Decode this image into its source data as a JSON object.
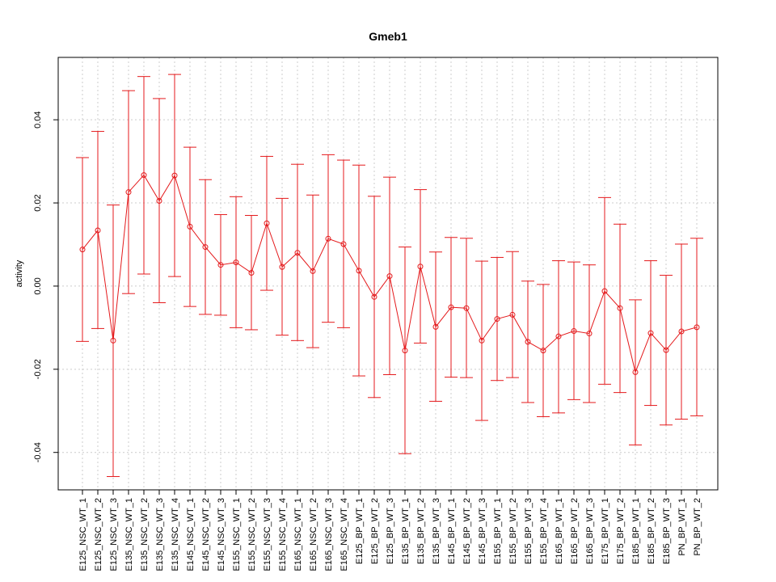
{
  "chart_data": {
    "type": "line",
    "title": "Gmeb1",
    "xlabel": "",
    "ylabel": "activity",
    "ylim": [
      -0.049,
      0.055
    ],
    "yticks": [
      -0.04,
      -0.02,
      0.0,
      0.02,
      0.04
    ],
    "ytick_labels": [
      "-0.04",
      "-0.02",
      "0.00",
      "0.02",
      "0.04"
    ],
    "grid": true,
    "series_color": "#e41a1c",
    "grid_color": "#cccccc",
    "categories": [
      "E125_NSC_WT_1",
      "E125_NSC_WT_2",
      "E125_NSC_WT_3",
      "E135_NSC_WT_1",
      "E135_NSC_WT_2",
      "E135_NSC_WT_3",
      "E135_NSC_WT_4",
      "E145_NSC_WT_1",
      "E145_NSC_WT_2",
      "E145_NSC_WT_3",
      "E155_NSC_WT_1",
      "E155_NSC_WT_2",
      "E155_NSC_WT_3",
      "E155_NSC_WT_4",
      "E165_NSC_WT_1",
      "E165_NSC_WT_2",
      "E165_NSC_WT_3",
      "E165_NSC_WT_4",
      "E125_BP_WT_1",
      "E125_BP_WT_2",
      "E125_BP_WT_3",
      "E135_BP_WT_1",
      "E135_BP_WT_2",
      "E135_BP_WT_3",
      "E145_BP_WT_1",
      "E145_BP_WT_2",
      "E145_BP_WT_3",
      "E155_BP_WT_1",
      "E155_BP_WT_2",
      "E155_BP_WT_3",
      "E155_BP_WT_4",
      "E165_BP_WT_1",
      "E165_BP_WT_2",
      "E165_BP_WT_3",
      "E175_BP_WT_1",
      "E175_BP_WT_2",
      "E185_BP_WT_1",
      "E185_BP_WT_2",
      "E185_BP_WT_3",
      "PN_BP_WT_1",
      "PN_BP_WT_2"
    ],
    "values": [
      0.0088,
      0.0134,
      -0.0131,
      0.0226,
      0.0267,
      0.0205,
      0.0266,
      0.0143,
      0.0094,
      0.0051,
      0.0057,
      0.0032,
      0.0151,
      0.0046,
      0.008,
      0.0036,
      0.0114,
      0.0101,
      0.0037,
      -0.0026,
      0.0024,
      -0.0155,
      0.0047,
      -0.0098,
      -0.0051,
      -0.0053,
      -0.0131,
      -0.0079,
      -0.0069,
      -0.0134,
      -0.0155,
      -0.0121,
      -0.0108,
      -0.0114,
      -0.0012,
      -0.0053,
      -0.0207,
      -0.0113,
      -0.0154,
      -0.0109,
      -0.0099
    ],
    "upper": [
      0.0309,
      0.0372,
      0.0195,
      0.047,
      0.0504,
      0.0451,
      0.0509,
      0.0334,
      0.0256,
      0.0172,
      0.0215,
      0.017,
      0.0312,
      0.0211,
      0.0293,
      0.0219,
      0.0316,
      0.0303,
      0.0291,
      0.0216,
      0.0262,
      0.0094,
      0.0232,
      0.0082,
      0.0117,
      0.0115,
      0.006,
      0.0069,
      0.0083,
      0.0012,
      0.0004,
      0.0061,
      0.0058,
      0.0051,
      0.0213,
      0.0149,
      -0.0033,
      0.0061,
      0.0026,
      0.0101,
      0.0115
    ],
    "lower": [
      -0.0133,
      -0.0102,
      -0.0458,
      -0.0018,
      0.0029,
      -0.004,
      0.0023,
      -0.0049,
      -0.0068,
      -0.007,
      -0.01,
      -0.0105,
      -0.001,
      -0.0118,
      -0.0131,
      -0.0148,
      -0.0087,
      -0.01,
      -0.0216,
      -0.0268,
      -0.0213,
      -0.0403,
      -0.0137,
      -0.0277,
      -0.0219,
      -0.022,
      -0.0323,
      -0.0227,
      -0.022,
      -0.028,
      -0.0314,
      -0.0305,
      -0.0273,
      -0.028,
      -0.0236,
      -0.0256,
      -0.0382,
      -0.0287,
      -0.0334,
      -0.032,
      -0.0312
    ]
  }
}
